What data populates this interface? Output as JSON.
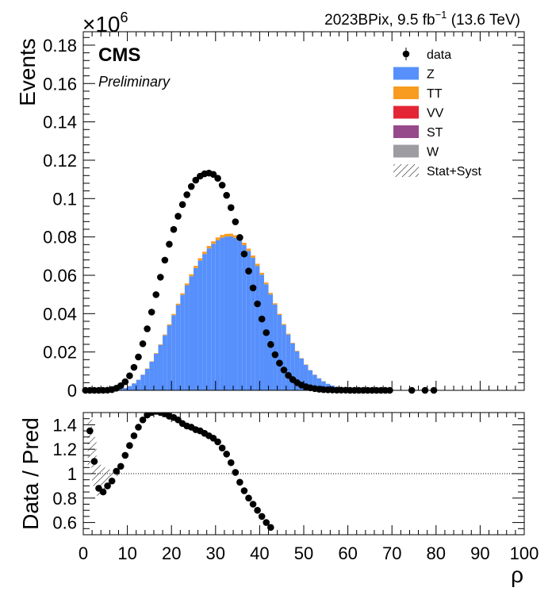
{
  "header": {
    "lumi_label": "2023BPix, 9.5 fb",
    "lumi_exp": "−1",
    "energy_label": "(13.6 TeV)",
    "exponent_base": "×10",
    "exponent_power": "6",
    "experiment": "CMS",
    "status": "Preliminary"
  },
  "legend": [
    {
      "label": "data",
      "kind": "marker",
      "color": "#000000"
    },
    {
      "label": "Z",
      "kind": "box",
      "color": "#5790fc"
    },
    {
      "label": "TT",
      "kind": "box",
      "color": "#f89c20"
    },
    {
      "label": "VV",
      "kind": "box",
      "color": "#e42536"
    },
    {
      "label": "ST",
      "kind": "box",
      "color": "#964a8b"
    },
    {
      "label": "W",
      "kind": "box",
      "color": "#9c9ca1"
    },
    {
      "label": "Stat+Syst",
      "kind": "hatch",
      "color": "#000000"
    }
  ],
  "chart_data": [
    {
      "type": "bar",
      "panel": "main",
      "xlabel": "",
      "ylabel": "Events",
      "xlim": [
        0,
        100
      ],
      "ylim": [
        0,
        0.187
      ],
      "y_multiplier": "×10^6",
      "xticks": [
        0,
        10,
        20,
        30,
        40,
        50,
        60,
        70,
        80,
        90,
        100
      ],
      "xtick_labels": [],
      "yticks": [
        0,
        0.02,
        0.04,
        0.06,
        0.08,
        0.1,
        0.12,
        0.14,
        0.16,
        0.18
      ],
      "ytick_labels": [
        "0",
        "0.02",
        "0.04",
        "0.06",
        "0.08",
        "0.1",
        "0.12",
        "0.14",
        "0.16",
        "0.18"
      ],
      "mc_stack": {
        "bin_width": 1,
        "x": [
          0,
          1,
          2,
          3,
          4,
          5,
          6,
          7,
          8,
          9,
          10,
          11,
          12,
          13,
          14,
          15,
          16,
          17,
          18,
          19,
          20,
          21,
          22,
          23,
          24,
          25,
          26,
          27,
          28,
          29,
          30,
          31,
          32,
          33,
          34,
          35,
          36,
          37,
          38,
          39,
          40,
          41,
          42,
          43,
          44,
          45,
          46,
          47,
          48,
          49,
          50,
          51,
          52,
          53,
          54,
          55,
          56,
          57,
          58,
          59
        ],
        "series": [
          {
            "name": "Z",
            "color": "#5790fc",
            "values": [
              0.0,
              0.0,
              0.0,
              0.0,
              0.0,
              0.0,
              0.0001,
              0.0003,
              0.0006,
              0.0012,
              0.0022,
              0.0036,
              0.0055,
              0.0081,
              0.0112,
              0.0149,
              0.0191,
              0.0237,
              0.0287,
              0.0339,
              0.0392,
              0.0445,
              0.0498,
              0.0548,
              0.0595,
              0.0638,
              0.0677,
              0.0711,
              0.074,
              0.0764,
              0.0783,
              0.0796,
              0.0802,
              0.0803,
              0.0795,
              0.078,
              0.0757,
              0.0727,
              0.0691,
              0.0649,
              0.0603,
              0.0553,
              0.05,
              0.0447,
              0.0393,
              0.0341,
              0.0291,
              0.0245,
              0.0203,
              0.0166,
              0.0133,
              0.0105,
              0.0081,
              0.0062,
              0.0047,
              0.0034,
              0.0025,
              0.0018,
              0.0012,
              0.0008
            ]
          },
          {
            "name": "TT",
            "color": "#f89c20",
            "values": [
              0.0,
              0.0,
              0.0,
              0.0,
              0.0,
              0.0,
              0.0,
              0.0,
              0.0,
              0.0,
              0.0001,
              0.0001,
              0.0001,
              0.0001,
              0.0002,
              0.0002,
              0.0003,
              0.0003,
              0.0004,
              0.0005,
              0.0006,
              0.0007,
              0.0008,
              0.0009,
              0.001,
              0.0011,
              0.0012,
              0.0012,
              0.0013,
              0.0013,
              0.0014,
              0.0014,
              0.0014,
              0.0014,
              0.0014,
              0.0013,
              0.0013,
              0.0012,
              0.0012,
              0.0011,
              0.001,
              0.0009,
              0.0008,
              0.0007,
              0.0006,
              0.0005,
              0.0004,
              0.0003,
              0.0003,
              0.0002,
              0.0002,
              0.0001,
              0.0001,
              0.0001,
              0.0001,
              0.0,
              0.0,
              0.0,
              0.0,
              0.0
            ]
          },
          {
            "name": "VV",
            "color": "#e42536",
            "values": [
              0.0,
              0.0,
              0.0,
              0.0,
              0.0,
              0.0,
              0.0,
              0.0,
              0.0,
              0.0,
              0.0,
              0.0,
              0.0,
              0.0,
              0.0,
              0.0,
              0.0,
              0.0,
              0.0,
              0.0,
              0.0,
              0.0,
              0.0,
              0.0,
              0.0,
              0.0,
              0.0,
              0.0,
              0.0,
              0.0,
              0.0,
              0.0,
              0.0,
              0.0,
              0.0,
              0.0,
              0.0,
              0.0,
              0.0,
              0.0,
              0.0,
              0.0,
              0.0,
              0.0,
              0.0,
              0.0,
              0.0,
              0.0,
              0.0,
              0.0,
              0.0,
              0.0,
              0.0,
              0.0,
              0.0,
              0.0,
              0.0,
              0.0,
              0.0,
              0.0
            ]
          },
          {
            "name": "ST",
            "color": "#964a8b",
            "values": [
              0.0,
              0.0,
              0.0,
              0.0,
              0.0,
              0.0,
              0.0,
              0.0,
              0.0,
              0.0,
              0.0,
              0.0,
              0.0,
              0.0,
              0.0,
              0.0,
              0.0,
              0.0,
              0.0,
              0.0,
              0.0,
              0.0,
              0.0,
              0.0,
              0.0,
              0.0,
              0.0,
              0.0,
              0.0,
              0.0,
              0.0,
              0.0,
              0.0,
              0.0,
              0.0,
              0.0,
              0.0,
              0.0,
              0.0,
              0.0,
              0.0,
              0.0,
              0.0,
              0.0,
              0.0,
              0.0,
              0.0,
              0.0,
              0.0,
              0.0,
              0.0,
              0.0,
              0.0,
              0.0,
              0.0,
              0.0,
              0.0,
              0.0,
              0.0,
              0.0
            ]
          },
          {
            "name": "W",
            "color": "#9c9ca1",
            "values": [
              0.0,
              0.0,
              0.0,
              0.0,
              0.0,
              0.0,
              0.0,
              0.0,
              0.0,
              0.0,
              0.0,
              0.0,
              0.0,
              0.0,
              0.0,
              0.0,
              0.0,
              0.0,
              0.0,
              0.0,
              0.0,
              0.0,
              0.0,
              0.0,
              0.0,
              0.0,
              0.0,
              0.0,
              0.0,
              0.0,
              0.0,
              0.0,
              0.0,
              0.0,
              0.0,
              0.0,
              0.0,
              0.0,
              0.0,
              0.0,
              0.0,
              0.0,
              0.0,
              0.0,
              0.0,
              0.0,
              0.0,
              0.0,
              0.0,
              0.0,
              0.0,
              0.0,
              0.0,
              0.0,
              0.0,
              0.0,
              0.0,
              0.0,
              0.0,
              0.0
            ]
          }
        ]
      },
      "data_points": {
        "name": "data",
        "x": [
          0.5,
          1.5,
          2.5,
          3.5,
          4.5,
          5.5,
          6.5,
          7.5,
          8.5,
          9.5,
          10.5,
          11.5,
          12.5,
          13.5,
          14.5,
          15.5,
          16.5,
          17.5,
          18.5,
          19.5,
          20.5,
          21.5,
          22.5,
          23.5,
          24.5,
          25.5,
          26.5,
          27.5,
          28.5,
          29.5,
          30.5,
          31.5,
          32.5,
          33.5,
          34.5,
          35.5,
          36.5,
          37.5,
          38.5,
          39.5,
          40.5,
          41.5,
          42.5,
          43.5,
          44.5,
          45.5,
          46.5,
          47.5,
          48.5,
          49.5,
          50.5,
          51.5,
          52.5,
          53.5,
          54.5,
          55.5,
          56.5,
          57.5,
          58.5,
          59.5,
          60.5,
          61.5,
          62.5,
          63.5,
          64.5,
          65.5,
          66.5,
          67.5,
          68.5,
          69.5,
          74.5,
          77.5,
          79.5
        ],
        "y": [
          0.0,
          0.0,
          0.0,
          0.0,
          0.0,
          0.0001,
          0.0004,
          0.0011,
          0.0024,
          0.0045,
          0.0076,
          0.012,
          0.0174,
          0.0243,
          0.0321,
          0.0408,
          0.0499,
          0.059,
          0.0679,
          0.0762,
          0.0839,
          0.0908,
          0.0969,
          0.102,
          0.1063,
          0.1096,
          0.1117,
          0.1129,
          0.1133,
          0.1126,
          0.1106,
          0.107,
          0.1017,
          0.0953,
          0.0879,
          0.0797,
          0.0711,
          0.0622,
          0.0534,
          0.0451,
          0.0372,
          0.0301,
          0.0239,
          0.0186,
          0.0142,
          0.0106,
          0.0078,
          0.0056,
          0.004,
          0.0027,
          0.0019,
          0.0013,
          0.0009,
          0.0006,
          0.0004,
          0.0003,
          0.0002,
          0.0001,
          0.0001,
          0.0001,
          0.0,
          0.0,
          0.0,
          0.0,
          0.0,
          0.0,
          0.0,
          0.0,
          0.0,
          0.0,
          0.0,
          0.0,
          0.0
        ]
      }
    },
    {
      "type": "scatter",
      "panel": "ratio",
      "xlabel": "ρ",
      "ylabel": "Data / Pred",
      "xlim": [
        0,
        100
      ],
      "ylim": [
        0.5,
        1.5
      ],
      "xticks": [
        0,
        10,
        20,
        30,
        40,
        50,
        60,
        70,
        80,
        90,
        100
      ],
      "xtick_labels": [
        "0",
        "10",
        "20",
        "30",
        "40",
        "50",
        "60",
        "70",
        "80",
        "90",
        "100"
      ],
      "yticks": [
        0.6,
        0.8,
        1.0,
        1.2,
        1.4
      ],
      "ytick_labels": [
        "0.6",
        "0.8",
        "1",
        "1.2",
        "1.4"
      ],
      "reference_line": 1.0,
      "points": {
        "x": [
          1.5,
          2.5,
          3.5,
          4.5,
          5.5,
          6.5,
          7.5,
          8.5,
          9.5,
          10.5,
          11.5,
          12.5,
          13.5,
          14.5,
          15.5,
          16.5,
          17.5,
          18.5,
          19.5,
          20.5,
          21.5,
          22.5,
          23.5,
          24.5,
          25.5,
          26.5,
          27.5,
          28.5,
          29.5,
          30.5,
          31.5,
          32.5,
          33.5,
          34.5,
          35.5,
          36.5,
          37.5,
          38.5,
          39.5,
          40.5,
          41.5,
          42.5
        ],
        "y": [
          1.35,
          1.1,
          0.88,
          0.85,
          0.9,
          0.94,
          1.02,
          1.06,
          1.15,
          1.23,
          1.31,
          1.38,
          1.44,
          1.48,
          1.5,
          1.51,
          1.5,
          1.49,
          1.47,
          1.46,
          1.44,
          1.41,
          1.39,
          1.38,
          1.36,
          1.35,
          1.33,
          1.31,
          1.29,
          1.26,
          1.21,
          1.16,
          1.09,
          1.01,
          0.93,
          0.86,
          0.8,
          0.75,
          0.7,
          0.65,
          0.6,
          0.56
        ]
      },
      "uncertainty_band": {
        "x": [
          1,
          2,
          3,
          4,
          5,
          6,
          7,
          8
        ],
        "lo": [
          1.05,
          0.9,
          0.82,
          0.85,
          0.9,
          0.95,
          0.98,
          0.99
        ],
        "hi": [
          1.45,
          1.3,
          1.1,
          1.05,
          1.05,
          1.03,
          1.02,
          1.01
        ]
      }
    }
  ]
}
